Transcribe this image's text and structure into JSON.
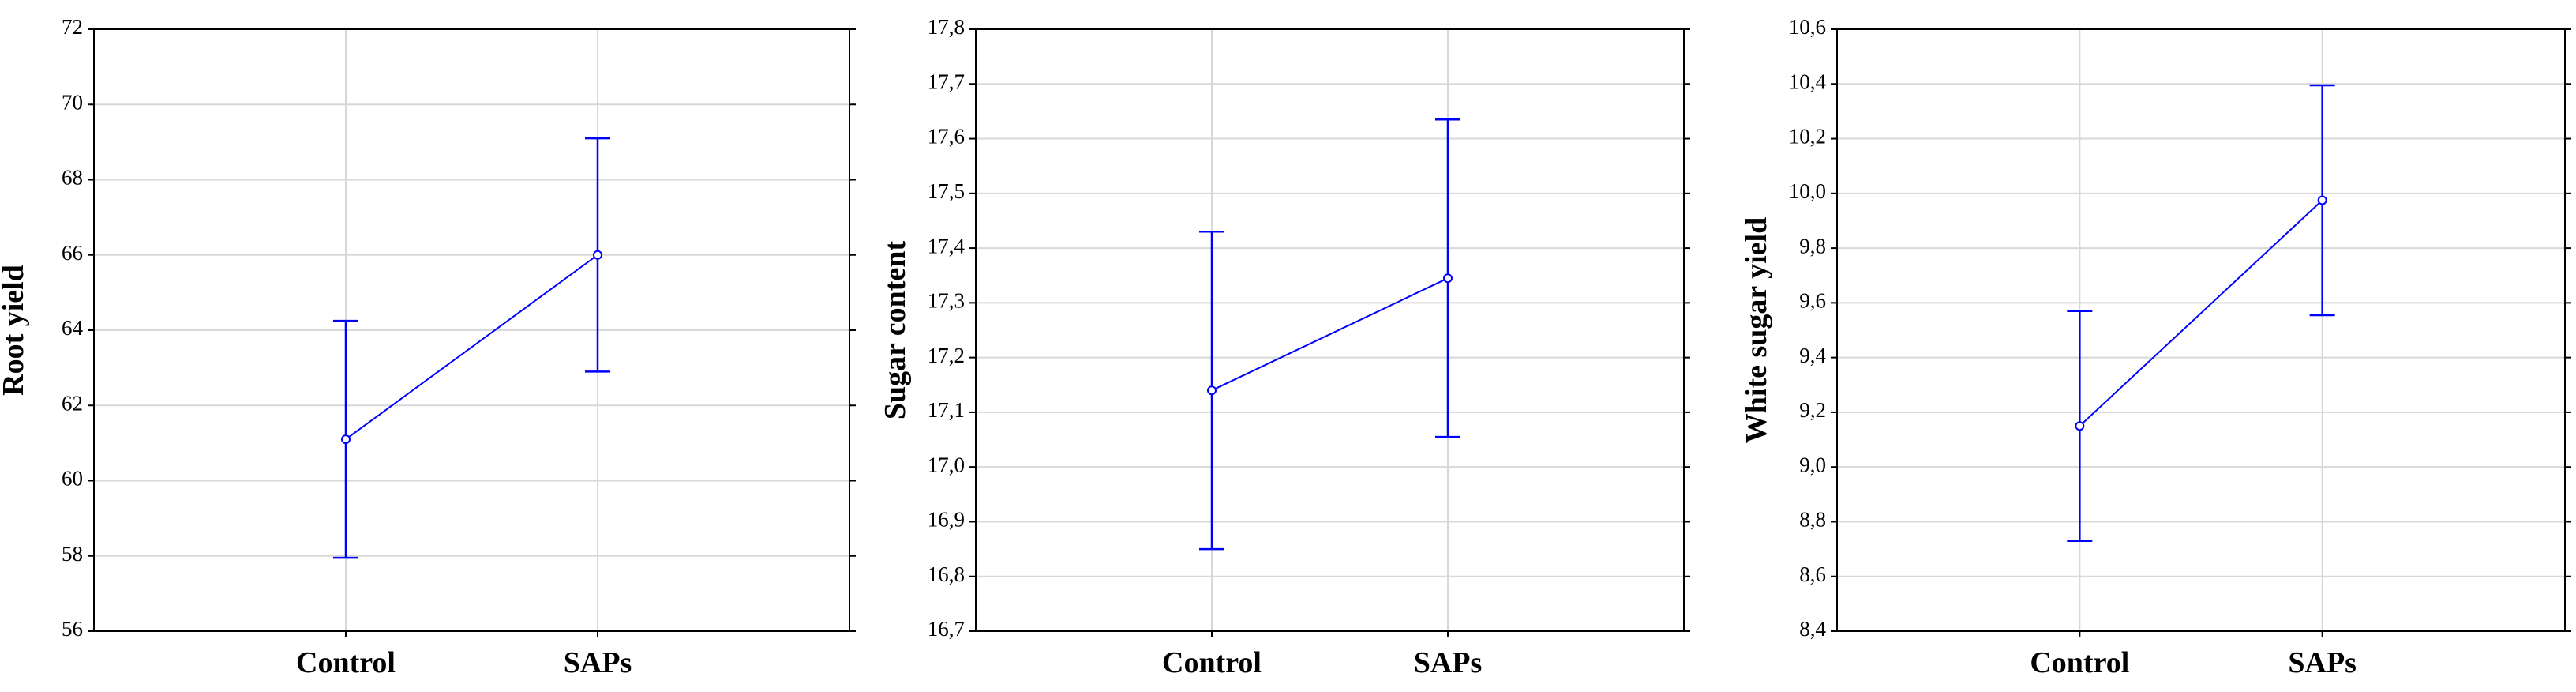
{
  "chart_data": [
    {
      "type": "line",
      "ylabel": "Root yield",
      "categories": [
        "Control",
        "SAPs"
      ],
      "series": [
        {
          "color": "#0000ff",
          "values": [
            61.1,
            66.0
          ],
          "errors": [
            3.15,
            3.1
          ]
        }
      ],
      "ylim": [
        56,
        72
      ],
      "yticks": [
        56,
        58,
        60,
        62,
        64,
        66,
        68,
        70,
        72
      ],
      "grid": true
    },
    {
      "type": "line",
      "ylabel": "Sugar content",
      "categories": [
        "Control",
        "SAPs"
      ],
      "series": [
        {
          "color": "#0000ff",
          "values": [
            17.14,
            17.345
          ],
          "errors": [
            0.29,
            0.29
          ]
        }
      ],
      "ylim": [
        16.7,
        17.8
      ],
      "yticks": [
        {
          "value": 16.7,
          "label": "16,7"
        },
        {
          "value": 16.8,
          "label": "16,8"
        },
        {
          "value": 16.9,
          "label": "16,9"
        },
        {
          "value": 17.0,
          "label": "17,0"
        },
        {
          "value": 17.1,
          "label": "17,1"
        },
        {
          "value": 17.2,
          "label": "17,2"
        },
        {
          "value": 17.3,
          "label": "17,3"
        },
        {
          "value": 17.4,
          "label": "17,4"
        },
        {
          "value": 17.5,
          "label": "17,5"
        },
        {
          "value": 17.6,
          "label": "17,6"
        },
        {
          "value": 17.7,
          "label": "17,7"
        },
        {
          "value": 17.8,
          "label": "17,8"
        }
      ],
      "grid": true
    },
    {
      "type": "line",
      "ylabel": "White sugar yield",
      "categories": [
        "Control",
        "SAPs"
      ],
      "series": [
        {
          "color": "#0000ff",
          "values": [
            9.15,
            9.975
          ],
          "errors": [
            0.42,
            0.42
          ]
        }
      ],
      "ylim": [
        8.4,
        10.6
      ],
      "yticks": [
        {
          "value": 8.4,
          "label": "8,4"
        },
        {
          "value": 8.6,
          "label": "8,6"
        },
        {
          "value": 8.8,
          "label": "8,8"
        },
        {
          "value": 9.0,
          "label": "9,0"
        },
        {
          "value": 9.2,
          "label": "9,2"
        },
        {
          "value": 9.4,
          "label": "9,4"
        },
        {
          "value": 9.6,
          "label": "9,6"
        },
        {
          "value": 9.8,
          "label": "9,8"
        },
        {
          "value": 10.0,
          "label": "10,0"
        },
        {
          "value": 10.2,
          "label": "10,2"
        },
        {
          "value": 10.4,
          "label": "10,4"
        },
        {
          "value": 10.6,
          "label": "10,6"
        }
      ],
      "grid": true
    }
  ]
}
